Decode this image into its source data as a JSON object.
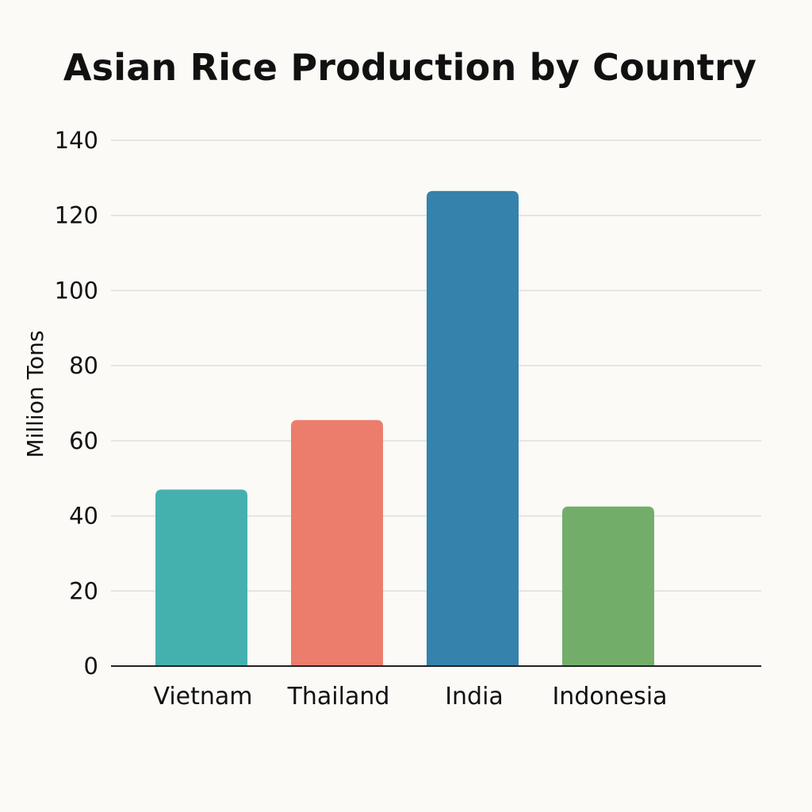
{
  "chart_data": {
    "type": "bar",
    "title": "Asian Rice Production by Country",
    "xlabel": "",
    "ylabel": "Million Tons",
    "categories": [
      "Vietnam",
      "Thailand",
      "India",
      "Indonesia"
    ],
    "values": [
      47,
      65.5,
      126.5,
      42.5
    ],
    "ylim": [
      0,
      140
    ],
    "yticks": [
      "0",
      "20",
      "40",
      "60",
      "80",
      "100",
      "120",
      "140"
    ],
    "ytick_values": [
      0,
      20,
      40,
      60,
      80,
      100,
      120,
      140
    ],
    "grid": true,
    "legend": "none",
    "colors": [
      "#45b1ae",
      "#ec7c6c",
      "#3582ad",
      "#72ae6a"
    ]
  }
}
